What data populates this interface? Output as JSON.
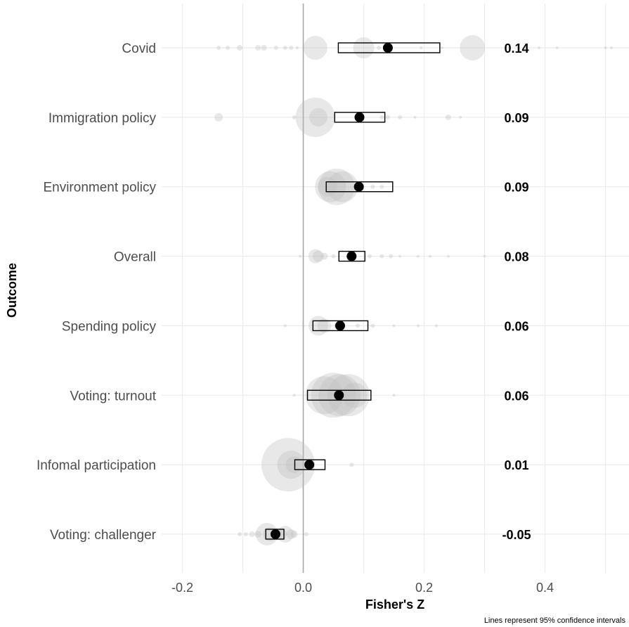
{
  "chart_data": {
    "type": "forest",
    "xlabel": "Fisher's Z",
    "ylabel": "Outcome",
    "caption": "Lines represent 95% confidence intervals",
    "xlim": [
      -0.25,
      0.54
    ],
    "xticks": [
      -0.2,
      0.0,
      0.2,
      0.4
    ],
    "xtick_labels": [
      "-0.2",
      "0.0",
      "0.2",
      "0.4"
    ],
    "reference_line": 0,
    "grid": true,
    "colors": {
      "estimate": "#000000",
      "study": "#bdbdbd",
      "grid": "#ebebeb",
      "zero_line": "#a6a6a6"
    },
    "categories": [
      "Covid",
      "Immigration policy",
      "Environment policy",
      "Overall",
      "Spending policy",
      "Voting: turnout",
      "Infomal participation",
      "Voting: challenger"
    ],
    "estimates": [
      0.14,
      0.093,
      0.092,
      0.08,
      0.061,
      0.059,
      0.01,
      -0.046
    ],
    "ci_lower": [
      0.058,
      0.052,
      0.038,
      0.059,
      0.016,
      0.007,
      -0.014,
      -0.062
    ],
    "ci_upper": [
      0.226,
      0.135,
      0.148,
      0.102,
      0.107,
      0.112,
      0.036,
      -0.032
    ],
    "estimate_labels": [
      "0.14",
      "0.09",
      "0.09",
      "0.08",
      "0.06",
      "0.06",
      "0.01",
      "-0.05"
    ],
    "studies": [
      [
        [
          -0.14,
          3
        ],
        [
          -0.125,
          3
        ],
        [
          -0.105,
          4
        ],
        [
          -0.075,
          4
        ],
        [
          -0.065,
          4
        ],
        [
          -0.045,
          3
        ],
        [
          -0.03,
          3
        ],
        [
          -0.02,
          3
        ],
        [
          -0.01,
          2
        ],
        [
          0.02,
          17
        ],
        [
          0.1,
          15
        ],
        [
          0.125,
          3
        ],
        [
          0.195,
          2
        ],
        [
          0.23,
          2
        ],
        [
          0.28,
          18
        ],
        [
          0.39,
          2
        ],
        [
          0.42,
          2
        ],
        [
          0.5,
          2
        ],
        [
          0.51,
          2
        ]
      ],
      [
        [
          -0.14,
          6
        ],
        [
          -0.015,
          3
        ],
        [
          0.02,
          28
        ],
        [
          0.025,
          13
        ],
        [
          0.13,
          3
        ],
        [
          0.14,
          3
        ],
        [
          0.16,
          3
        ],
        [
          0.185,
          2
        ],
        [
          0.24,
          4
        ],
        [
          0.26,
          2
        ]
      ],
      [
        [
          0.045,
          22
        ],
        [
          0.055,
          26
        ],
        [
          0.065,
          22
        ],
        [
          0.04,
          14
        ],
        [
          0.115,
          3
        ],
        [
          0.13,
          3
        ]
      ],
      [
        [
          -0.005,
          2
        ],
        [
          0.02,
          10
        ],
        [
          0.025,
          8
        ],
        [
          0.035,
          5
        ],
        [
          0.05,
          3
        ],
        [
          0.11,
          3
        ],
        [
          0.13,
          3
        ],
        [
          0.145,
          3
        ],
        [
          0.16,
          2
        ],
        [
          0.19,
          2
        ],
        [
          0.21,
          2
        ],
        [
          0.24,
          2
        ],
        [
          0.3,
          2
        ]
      ],
      [
        [
          -0.03,
          2
        ],
        [
          0.0,
          2
        ],
        [
          0.025,
          14
        ],
        [
          0.035,
          10
        ],
        [
          0.055,
          4
        ],
        [
          0.09,
          3
        ],
        [
          0.115,
          3
        ],
        [
          0.15,
          2
        ],
        [
          0.19,
          2
        ],
        [
          0.22,
          2
        ]
      ],
      [
        [
          -0.015,
          2
        ],
        [
          0.035,
          27
        ],
        [
          0.05,
          32
        ],
        [
          0.06,
          30
        ],
        [
          0.075,
          30
        ],
        [
          0.085,
          18
        ],
        [
          0.15,
          2
        ]
      ],
      [
        [
          -0.025,
          38
        ],
        [
          -0.02,
          20
        ],
        [
          -0.015,
          12
        ],
        [
          0.015,
          4
        ],
        [
          0.08,
          3
        ]
      ],
      [
        [
          -0.105,
          3
        ],
        [
          -0.095,
          3
        ],
        [
          -0.085,
          4
        ],
        [
          -0.075,
          5
        ],
        [
          -0.06,
          16
        ],
        [
          -0.055,
          10
        ],
        [
          -0.045,
          8
        ],
        [
          -0.035,
          7
        ],
        [
          -0.03,
          12
        ],
        [
          -0.02,
          7
        ],
        [
          -0.015,
          5
        ],
        [
          0.005,
          3
        ]
      ]
    ]
  }
}
